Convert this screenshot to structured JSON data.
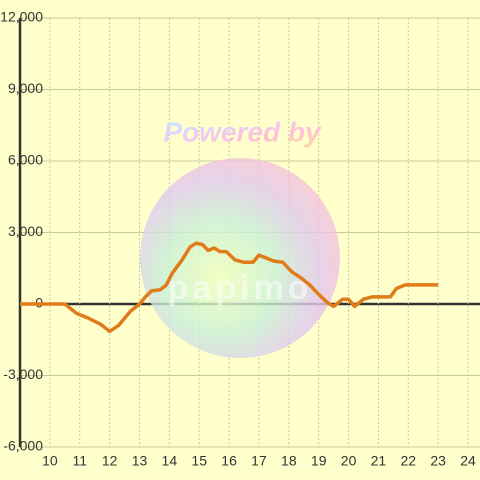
{
  "chart_data": {
    "type": "line",
    "watermark": [
      "Powered by",
      "papimo"
    ],
    "x": [
      9.0,
      10.5,
      10.9,
      11.3,
      11.7,
      12.0,
      12.3,
      12.7,
      13.0,
      13.2,
      13.4,
      13.7,
      13.9,
      14.1,
      14.4,
      14.7,
      14.9,
      15.1,
      15.3,
      15.5,
      15.7,
      15.9,
      16.2,
      16.5,
      16.8,
      17.0,
      17.2,
      17.5,
      17.8,
      18.1,
      18.4,
      18.7,
      19.0,
      19.3,
      19.5,
      19.8,
      20.0,
      20.2,
      20.5,
      20.8,
      21.2,
      21.4,
      21.6,
      21.9,
      22.2,
      23.0
    ],
    "series": [
      {
        "color": "#e07b1a",
        "values": [
          0,
          0,
          -400,
          -600,
          -850,
          -1150,
          -900,
          -300,
          0,
          300,
          550,
          600,
          800,
          1300,
          1800,
          2400,
          2550,
          2500,
          2250,
          2350,
          2200,
          2200,
          1850,
          1750,
          1750,
          2050,
          1950,
          1800,
          1750,
          1350,
          1100,
          800,
          400,
          50,
          -100,
          200,
          200,
          -100,
          200,
          300,
          300,
          300,
          650,
          800,
          800,
          800
        ]
      }
    ],
    "xlim": [
      9,
      24.4
    ],
    "xticks": [
      10,
      11,
      12,
      13,
      14,
      15,
      16,
      17,
      18,
      19,
      20,
      21,
      22,
      23,
      24
    ],
    "ylim": [
      -6000,
      12000
    ],
    "yticks": [
      {
        "value": -6000,
        "label": "-6,000"
      },
      {
        "value": -3000,
        "label": "-3,000"
      },
      0,
      {
        "value": 3000,
        "label": "3,000"
      },
      {
        "value": 6000,
        "label": "6,000"
      },
      {
        "value": 9000,
        "label": "9,000"
      },
      {
        "value": 12000,
        "label": "12,000"
      }
    ],
    "grid": true
  }
}
